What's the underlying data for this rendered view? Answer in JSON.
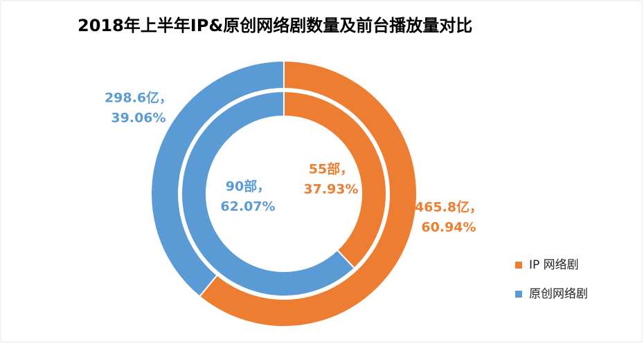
{
  "chart_data": {
    "type": "donut",
    "title": "2018年上半年IP&原创网络剧数量及前台播放量对比",
    "categories": [
      "IP 网络剧",
      "原创网络剧"
    ],
    "colors": [
      "#ed7d31",
      "#5b9bd5"
    ],
    "legend": "right",
    "rings": [
      {
        "values": [
          60.94,
          39.06
        ],
        "value_labels": [
          "60.94%",
          "39.06%"
        ],
        "amounts": [
          465.8,
          298.6
        ],
        "amount_labels": [
          "465.8亿，",
          "298.6亿，"
        ]
      },
      {
        "values": [
          37.93,
          62.07
        ],
        "value_labels": [
          "37.93%",
          "62.07%"
        ],
        "amounts": [
          55,
          90
        ],
        "amount_labels": [
          "55部，",
          "90部，"
        ]
      }
    ]
  }
}
